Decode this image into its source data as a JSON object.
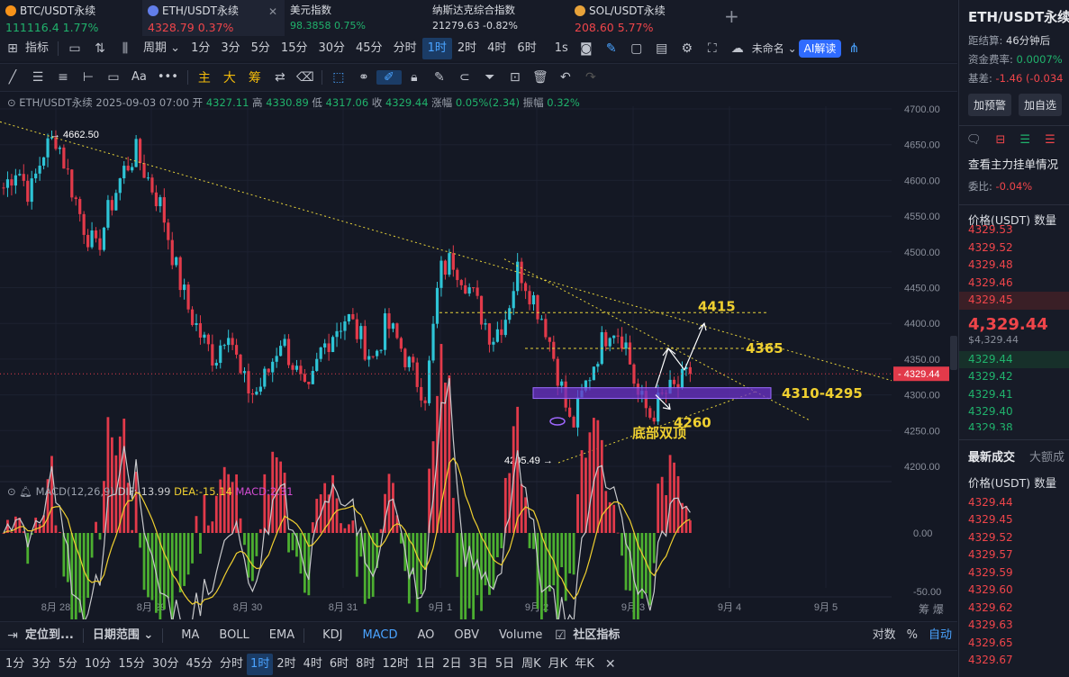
{
  "tickers": [
    {
      "name": "BTC/USDT永续",
      "price": "111116.4",
      "change": "1.77%",
      "dir": "up",
      "coin_color": "#f7931a"
    },
    {
      "name": "ETH/USDT永续",
      "price": "4328.79",
      "change": "0.37%",
      "dir": "dn",
      "coin_color": "#627eea"
    },
    {
      "name": "美元指数",
      "price": "98.3858",
      "change": "0.75%",
      "dir": "up",
      "coin_color": ""
    },
    {
      "name": "纳斯达克综合指数",
      "price": "21279.63",
      "change": "-0.82%",
      "dir": "neutral",
      "coin_color": ""
    },
    {
      "name": "SOL/USDT永续",
      "price": "208.60",
      "change": "5.77%",
      "dir": "dn",
      "coin_color": "#e8a33a"
    }
  ],
  "add_tab": "+",
  "toolbar": {
    "indicator": "指标",
    "period": "周期",
    "intervals": [
      "1分",
      "3分",
      "5分",
      "15分",
      "30分",
      "45分",
      "分时",
      "1时",
      "2时",
      "4时",
      "6时"
    ],
    "selected_interval": "1时",
    "one_s": "1s",
    "layout_name": "未命名",
    "ai": "AI解读"
  },
  "draw_tools": {
    "zhu": "主",
    "da": "大",
    "chou": "筹",
    "aa": "Aa",
    "more": "•••"
  },
  "ohlc": {
    "symbol": "ETH/USDT永续",
    "time": "2025-09-03 07:00",
    "open_label": "开",
    "open": "4327.11",
    "high_label": "高",
    "high": "4330.89",
    "low_label": "低",
    "low": "4317.06",
    "close_label": "收",
    "close": "4329.44",
    "chg_label": "涨幅",
    "chg": "0.05%(2.34)",
    "amp_label": "振幅",
    "amp": "0.32%"
  },
  "chart_data": {
    "type": "candlestick",
    "price_axis": [
      "4700.00",
      "4650.00",
      "4600.00",
      "4550.00",
      "4500.00",
      "4450.00",
      "4400.00",
      "4350.00",
      "4300.00",
      "4250.00",
      "4200.00"
    ],
    "ylim": [
      4180,
      4715
    ],
    "date_axis": [
      "8月 28",
      "8月 29",
      "8月 30",
      "8月 31",
      "9月 1",
      "9月 2",
      "9月 3",
      "9月 4",
      "9月 5"
    ],
    "last_price": "4329.44",
    "high_marker": "4662.50",
    "low_marker": "4205.49",
    "levels": {
      "l4415": "4415",
      "l4365": "4365",
      "zone": "4310-4295",
      "l4260": "4260"
    },
    "pattern_label": "底部双顶",
    "close_path": [
      [
        "8月 27",
        4590
      ],
      [
        "",
        4620
      ],
      [
        "",
        4580
      ],
      [
        "",
        4640
      ],
      [
        "",
        4662
      ],
      [
        "",
        4600
      ],
      [
        "",
        4540
      ],
      [
        "8月 28",
        4500
      ],
      [
        "",
        4560
      ],
      [
        "",
        4610
      ],
      [
        "",
        4640
      ],
      [
        "",
        4600
      ],
      [
        "8月 29",
        4560
      ],
      [
        "",
        4480
      ],
      [
        "",
        4420
      ],
      [
        "",
        4380
      ],
      [
        "",
        4350
      ],
      [
        "",
        4400
      ],
      [
        "",
        4320
      ],
      [
        "8月 30",
        4300
      ],
      [
        "",
        4330
      ],
      [
        "",
        4380
      ],
      [
        "",
        4340
      ],
      [
        "",
        4290
      ],
      [
        "",
        4360
      ],
      [
        "",
        4390
      ],
      [
        "8月 31",
        4410
      ],
      [
        "",
        4380
      ],
      [
        "",
        4350
      ],
      [
        "",
        4400
      ],
      [
        "",
        4370
      ],
      [
        "",
        4330
      ],
      [
        "",
        4300
      ],
      [
        "9月 1",
        4470
      ],
      [
        "",
        4490
      ],
      [
        "",
        4460
      ],
      [
        "",
        4420
      ],
      [
        "",
        4380
      ],
      [
        "",
        4410
      ],
      [
        "",
        4480
      ],
      [
        "9月 2",
        4440
      ],
      [
        "",
        4400
      ],
      [
        "",
        4330
      ],
      [
        "",
        4250
      ],
      [
        "",
        4310
      ],
      [
        "",
        4360
      ],
      [
        "",
        4400
      ],
      [
        "9月 3",
        4380
      ],
      [
        "",
        4300
      ],
      [
        "",
        4270
      ],
      [
        "",
        4300
      ],
      [
        "",
        4310
      ],
      [
        "",
        4329
      ]
    ],
    "macd": {
      "label": "MACD(12,26,9)",
      "dif_label": "DIF:",
      "dif": "-13.99",
      "dea_label": "DEA:",
      "dea": "-15.14",
      "macd_label": "MACD:",
      "macd_val": "2.31",
      "axis": [
        "0.00",
        "-50.00"
      ]
    }
  },
  "bottom_bar": {
    "locate": "定位到...",
    "date_range": "日期范围",
    "indicators": [
      "MA",
      "BOLL",
      "EMA",
      "KDJ",
      "MACD",
      "AO",
      "OBV",
      "Volume"
    ],
    "selected": "MACD",
    "community": "社区指标",
    "log": "对数",
    "pct": "%",
    "auto": "自动"
  },
  "bottom_intervals": [
    "1分",
    "3分",
    "5分",
    "10分",
    "15分",
    "30分",
    "45分",
    "分时",
    "1时",
    "2时",
    "4时",
    "6时",
    "8时",
    "12时",
    "1日",
    "2日",
    "3日",
    "5日",
    "周K",
    "月K",
    "年K"
  ],
  "bottom_selected": "1时",
  "right_panel": {
    "title": "ETH/USDT永续",
    "settle_label": "距结算:",
    "settle": "46分钟后",
    "funding_label": "资金费率:",
    "funding": "0.0007%",
    "basis_label": "基差:",
    "basis": "-1.46 (-0.034",
    "alert_btn": "加预警",
    "fav_btn": "加自选",
    "depth_title": "查看主力挂单情况",
    "ratio_label": "委比:",
    "ratio": "-0.04%",
    "price_col": "价格(USDT)",
    "qty_col": "数量",
    "asks": [
      "4329.53",
      "4329.52",
      "4329.48",
      "4329.46",
      "4329.45"
    ],
    "last_big": "4,329.44",
    "last_small": "$4,329.44",
    "bids": [
      "4329.44",
      "4329.42",
      "4329.41",
      "4329.40",
      "4329.38"
    ],
    "trades_tab": "最新成交",
    "big_tab": "大额成",
    "trades": [
      "4329.44",
      "4329.45",
      "4329.52",
      "4329.57",
      "4329.59",
      "4329.60",
      "4329.62",
      "4329.63",
      "4329.65",
      "4329.67"
    ]
  },
  "colors": {
    "up": "#20b26c",
    "down": "#ef454a",
    "accent": "#4aa3ff",
    "level": "#f0d030",
    "zone": "#7b3fd6"
  }
}
